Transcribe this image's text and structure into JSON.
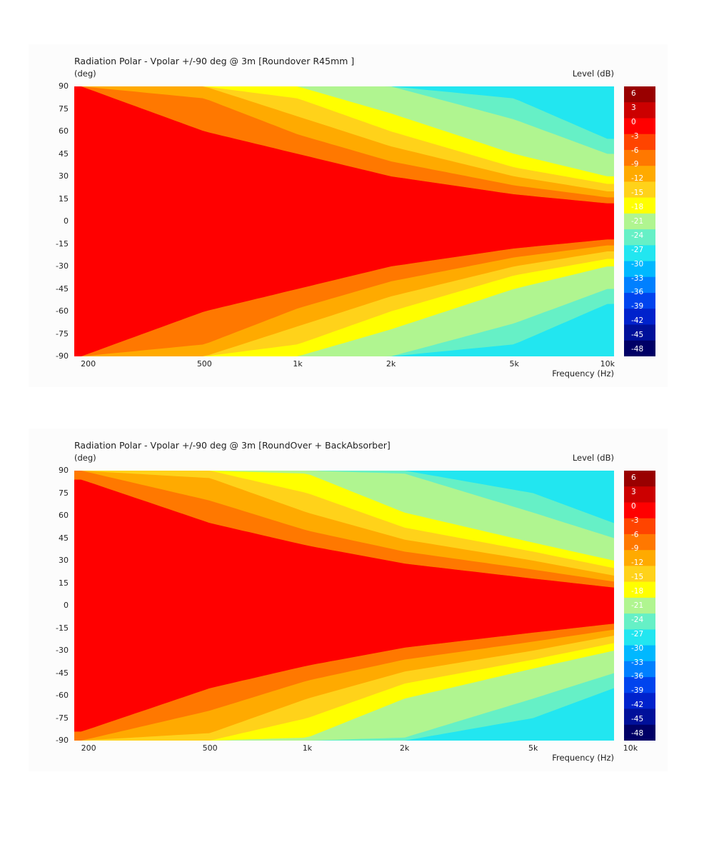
{
  "colors": {
    "levels": [
      "#000066",
      "#00109a",
      "#0022cc",
      "#0044ee",
      "#0080ff",
      "#00b8ff",
      "#22e6f0",
      "#66f0c6",
      "#b0f590",
      "#ffff00",
      "#ffd21a",
      "#ffaa00",
      "#ff7800",
      "#ff4400",
      "#ff0000",
      "#cc0000",
      "#990000"
    ]
  },
  "chart_data": [
    {
      "type": "heatmap",
      "title": "Radiation Polar - Vpolar +/-90 deg @ 3m [Roundover R45mm ]",
      "ylabel": "(deg)",
      "xlabel": "Frequency  (Hz)",
      "colorbar_label": "Level  (dB)",
      "x_scale": "log",
      "xlim": [
        190,
        10500
      ],
      "ylim": [
        -90,
        90
      ],
      "x_ticks": [
        {
          "value": 200,
          "label": "200"
        },
        {
          "value": 500,
          "label": "500"
        },
        {
          "value": 1000,
          "label": "1k"
        },
        {
          "value": 2000,
          "label": "2k"
        },
        {
          "value": 5000,
          "label": "5k"
        },
        {
          "value": 10000,
          "label": "10k"
        }
      ],
      "y_ticks": [
        90,
        75,
        60,
        45,
        30,
        15,
        0,
        -15,
        -30,
        -45,
        -60,
        -75,
        -90
      ],
      "y_tick_labels": [
        "90",
        "75",
        "60",
        "45",
        "30",
        "15",
        "0",
        "-15",
        "-30",
        "-45",
        "-60",
        "-75",
        "-90"
      ],
      "colorbar_ticks": [
        "6",
        "3",
        "0",
        "-3",
        "-6",
        "-9",
        "-12",
        "-15",
        "-18",
        "-21",
        "-24",
        "-27",
        "-30",
        "-33",
        "-36",
        "-39",
        "-42",
        "-45",
        "-48"
      ],
      "colorbar_range": [
        -49.5,
        7.5
      ],
      "frequencies": [
        200,
        500,
        1000,
        2000,
        5000,
        10000
      ],
      "contours": [
        {
          "level": -3,
          "angle": [
            90,
            60,
            45,
            30,
            18,
            12
          ]
        },
        {
          "level": -6,
          "angle": [
            90,
            82,
            58,
            40,
            24,
            16
          ]
        },
        {
          "level": -9,
          "angle": [
            90,
            90,
            70,
            50,
            30,
            20
          ]
        },
        {
          "level": -12,
          "angle": [
            90,
            90,
            82,
            60,
            36,
            25
          ]
        },
        {
          "level": -15,
          "angle": [
            90,
            90,
            90,
            72,
            45,
            30
          ]
        },
        {
          "level": -18,
          "angle": [
            90,
            90,
            90,
            85,
            55,
            36
          ]
        },
        {
          "level": -21,
          "angle": [
            90,
            90,
            90,
            90,
            68,
            45
          ]
        },
        {
          "level": -24,
          "angle": [
            90,
            90,
            90,
            90,
            82,
            55
          ]
        }
      ]
    },
    {
      "type": "heatmap",
      "title": "Radiation Polar - Vpolar +/-90 deg @ 3m [RoundOver + BackAbsorber]",
      "ylabel": "(deg)",
      "xlabel": "Frequency  (Hz)",
      "colorbar_label": "Level  (dB)",
      "x_scale": "log",
      "xlim": [
        190,
        8900
      ],
      "ylim": [
        -90,
        90
      ],
      "x_ticks": [
        {
          "value": 200,
          "label": "200"
        },
        {
          "value": 500,
          "label": "500"
        },
        {
          "value": 1000,
          "label": "1k"
        },
        {
          "value": 2000,
          "label": "2k"
        },
        {
          "value": 5000,
          "label": "5k"
        },
        {
          "value": 10000,
          "label": "10k"
        }
      ],
      "y_ticks": [
        90,
        75,
        60,
        45,
        30,
        15,
        0,
        -15,
        -30,
        -45,
        -60,
        -75,
        -90
      ],
      "y_tick_labels": [
        "90",
        "75",
        "60",
        "45",
        "30",
        "15",
        "0",
        "-15",
        "-30",
        "-45",
        "-60",
        "-75",
        "-90"
      ],
      "colorbar_ticks": [
        "6",
        "3",
        "0",
        "-3",
        "-6",
        "-9",
        "-12",
        "-15",
        "-18",
        "-21",
        "-24",
        "-27",
        "-30",
        "-33",
        "-36",
        "-39",
        "-42",
        "-45",
        "-48"
      ],
      "colorbar_range": [
        -49.5,
        7.5
      ],
      "frequencies": [
        200,
        500,
        1000,
        2000,
        5000,
        8900
      ],
      "contours": [
        {
          "level": -3,
          "angle": [
            84,
            55,
            40,
            28,
            18,
            12
          ]
        },
        {
          "level": -6,
          "angle": [
            90,
            70,
            50,
            36,
            24,
            16
          ]
        },
        {
          "level": -9,
          "angle": [
            90,
            85,
            62,
            44,
            30,
            20
          ]
        },
        {
          "level": -12,
          "angle": [
            90,
            90,
            75,
            52,
            36,
            25
          ]
        },
        {
          "level": -15,
          "angle": [
            90,
            90,
            88,
            62,
            42,
            30
          ]
        },
        {
          "level": -18,
          "angle": [
            90,
            90,
            90,
            75,
            50,
            36
          ]
        },
        {
          "level": -21,
          "angle": [
            90,
            90,
            90,
            88,
            62,
            45
          ]
        },
        {
          "level": -24,
          "angle": [
            90,
            90,
            90,
            90,
            75,
            55
          ]
        }
      ]
    }
  ]
}
